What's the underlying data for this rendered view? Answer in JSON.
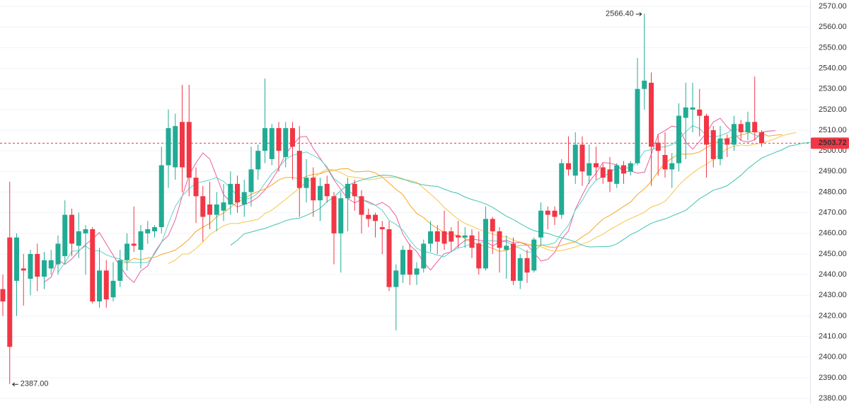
{
  "chart_data": {
    "type": "candlestick",
    "up_color": "#22ab94",
    "down_color": "#f23645",
    "grid": true,
    "ylim": [
      2377.3,
      2573.1
    ],
    "yticks": [
      {
        "value": 2380,
        "label": "2380.00"
      },
      {
        "value": 2390,
        "label": "2390.00"
      },
      {
        "value": 2400,
        "label": "2400.00"
      },
      {
        "value": 2410,
        "label": "2410.00"
      },
      {
        "value": 2420,
        "label": "2420.00"
      },
      {
        "value": 2430,
        "label": "2430.00"
      },
      {
        "value": 2440,
        "label": "2440.00"
      },
      {
        "value": 2450,
        "label": "2450.00"
      },
      {
        "value": 2460,
        "label": "2460.00"
      },
      {
        "value": 2470,
        "label": "2470.00"
      },
      {
        "value": 2480,
        "label": "2480.00"
      },
      {
        "value": 2490,
        "label": "2490.00"
      },
      {
        "value": 2500,
        "label": "2500.00"
      },
      {
        "value": 2510,
        "label": "2510.00"
      },
      {
        "value": 2520,
        "label": "2520.00"
      },
      {
        "value": 2530,
        "label": "2530.00"
      },
      {
        "value": 2540,
        "label": "2540.00"
      },
      {
        "value": 2550,
        "label": "2550.00"
      },
      {
        "value": 2560,
        "label": "2560.00"
      },
      {
        "value": 2570,
        "label": "2570.00"
      }
    ],
    "price_line": {
      "value": 2503.72,
      "label": "2503.72",
      "color": "#f23645"
    },
    "annotations": [
      {
        "value": 2566.4,
        "label": "2566.40",
        "kind": "high"
      },
      {
        "value": 2387,
        "label": "2387.00",
        "kind": "low"
      }
    ],
    "moving_averages": [
      {
        "period": 5,
        "shift": 2,
        "color": "#e8609f"
      },
      {
        "period": 9,
        "shift": 0,
        "color": "#5fd3c6"
      },
      {
        "period": 15,
        "shift": 3,
        "color": "#f5a623"
      },
      {
        "period": 20,
        "shift": 5,
        "color": "#f7c548"
      },
      {
        "period": 26,
        "shift": 8,
        "color": "#3fc3b0"
      }
    ],
    "ohlc": [
      [
        2433,
        2440,
        2420,
        2427
      ],
      [
        2458,
        2485,
        2387,
        2405
      ],
      [
        2437,
        2460,
        2420,
        2458
      ],
      [
        2443,
        2450,
        2425,
        2442
      ],
      [
        2438,
        2452,
        2430,
        2450
      ],
      [
        2450,
        2455,
        2432,
        2439
      ],
      [
        2439,
        2451,
        2433,
        2447
      ],
      [
        2443,
        2452,
        2440,
        2447
      ],
      [
        2445,
        2459,
        2440,
        2455
      ],
      [
        2449,
        2476,
        2445,
        2469
      ],
      [
        2469,
        2472,
        2449,
        2455
      ],
      [
        2454,
        2470,
        2448,
        2461
      ],
      [
        2460,
        2464,
        2440,
        2462
      ],
      [
        2462,
        2463,
        2426,
        2427
      ],
      [
        2427,
        2453,
        2424,
        2442
      ],
      [
        2442,
        2447,
        2424,
        2428
      ],
      [
        2429,
        2446,
        2427,
        2437
      ],
      [
        2437,
        2452,
        2434,
        2447
      ],
      [
        2447,
        2460,
        2442,
        2455
      ],
      [
        2455,
        2473,
        2451,
        2454
      ],
      [
        2452,
        2464,
        2443,
        2461
      ],
      [
        2460,
        2466,
        2455,
        2462
      ],
      [
        2461,
        2464,
        2458,
        2463
      ],
      [
        2463,
        2502,
        2460,
        2493
      ],
      [
        2493,
        2520,
        2482,
        2511
      ],
      [
        2492,
        2518,
        2486,
        2512
      ],
      [
        2514,
        2532,
        2480,
        2492
      ],
      [
        2514,
        2532,
        2478,
        2487
      ],
      [
        2487,
        2492,
        2465,
        2478
      ],
      [
        2478,
        2483,
        2456,
        2468
      ],
      [
        2474,
        2485,
        2462,
        2469
      ],
      [
        2469,
        2480,
        2461,
        2474
      ],
      [
        2471,
        2484,
        2466,
        2475
      ],
      [
        2474,
        2490,
        2469,
        2484
      ],
      [
        2484,
        2488,
        2470,
        2475
      ],
      [
        2474,
        2486,
        2468,
        2480
      ],
      [
        2480,
        2502,
        2473,
        2491
      ],
      [
        2491,
        2503,
        2486,
        2500
      ],
      [
        2500,
        2535,
        2494,
        2511
      ],
      [
        2496,
        2513,
        2493,
        2511
      ],
      [
        2511,
        2514,
        2490,
        2500
      ],
      [
        2497,
        2514,
        2492,
        2511
      ],
      [
        2511,
        2514,
        2486,
        2502
      ],
      [
        2500,
        2512,
        2468,
        2482
      ],
      [
        2482,
        2496,
        2475,
        2487
      ],
      [
        2487,
        2492,
        2468,
        2476
      ],
      [
        2476,
        2487,
        2466,
        2483
      ],
      [
        2484,
        2488,
        2475,
        2478
      ],
      [
        2478,
        2480,
        2445,
        2460
      ],
      [
        2460,
        2480,
        2441,
        2477
      ],
      [
        2477,
        2487,
        2461,
        2484
      ],
      [
        2484,
        2486,
        2471,
        2478
      ],
      [
        2478,
        2481,
        2460,
        2469
      ],
      [
        2469,
        2472,
        2463,
        2467
      ],
      [
        2469,
        2470,
        2458,
        2466
      ],
      [
        2463,
        2466,
        2450,
        2462
      ],
      [
        2462,
        2466,
        2432,
        2434
      ],
      [
        2434,
        2445,
        2413,
        2442
      ],
      [
        2440,
        2454,
        2436,
        2452
      ],
      [
        2452,
        2455,
        2435,
        2440
      ],
      [
        2440,
        2446,
        2435,
        2443
      ],
      [
        2443,
        2457,
        2441,
        2455
      ],
      [
        2455,
        2466,
        2451,
        2461
      ],
      [
        2461,
        2464,
        2450,
        2456
      ],
      [
        2461,
        2471,
        2452,
        2455
      ],
      [
        2461,
        2463,
        2451,
        2456
      ],
      [
        2459,
        2466,
        2453,
        2458
      ],
      [
        2458,
        2463,
        2453,
        2459
      ],
      [
        2459,
        2462,
        2448,
        2453
      ],
      [
        2455,
        2461,
        2440,
        2443
      ],
      [
        2443,
        2473,
        2442,
        2467
      ],
      [
        2467,
        2468,
        2450,
        2461
      ],
      [
        2461,
        2463,
        2441,
        2453
      ],
      [
        2452,
        2459,
        2438,
        2454
      ],
      [
        2455,
        2458,
        2435,
        2437
      ],
      [
        2437,
        2450,
        2433,
        2448
      ],
      [
        2448,
        2452,
        2436,
        2441
      ],
      [
        2442,
        2458,
        2441,
        2457
      ],
      [
        2458,
        2475,
        2454,
        2471
      ],
      [
        2471,
        2473,
        2462,
        2469
      ],
      [
        2471,
        2473,
        2464,
        2468
      ],
      [
        2469,
        2496,
        2467,
        2494
      ],
      [
        2494,
        2507,
        2488,
        2491
      ],
      [
        2488,
        2509,
        2484,
        2503
      ],
      [
        2503,
        2507,
        2483,
        2490
      ],
      [
        2488,
        2503,
        2484,
        2494
      ],
      [
        2494,
        2502,
        2486,
        2492
      ],
      [
        2492,
        2494,
        2484,
        2487
      ],
      [
        2491,
        2497,
        2480,
        2485
      ],
      [
        2484,
        2494,
        2482,
        2493
      ],
      [
        2493,
        2495,
        2484,
        2489
      ],
      [
        2490,
        2495,
        2488,
        2494
      ],
      [
        2494,
        2545,
        2493,
        2530
      ],
      [
        2530,
        2566.4,
        2520,
        2534
      ],
      [
        2533,
        2538,
        2483,
        2502
      ],
      [
        2504,
        2508,
        2488,
        2500
      ],
      [
        2498,
        2509,
        2487,
        2491
      ],
      [
        2491,
        2499,
        2482,
        2494
      ],
      [
        2494,
        2523,
        2490,
        2517
      ],
      [
        2516,
        2533,
        2496,
        2521
      ],
      [
        2520,
        2533,
        2509,
        2521
      ],
      [
        2520,
        2530,
        2507,
        2517
      ],
      [
        2517,
        2518,
        2487,
        2503
      ],
      [
        2510,
        2512,
        2492,
        2496
      ],
      [
        2496,
        2512,
        2493,
        2506
      ],
      [
        2506,
        2508,
        2497,
        2503
      ],
      [
        2503,
        2517,
        2500,
        2513
      ],
      [
        2513,
        2515,
        2505,
        2509
      ],
      [
        2509,
        2519,
        2505,
        2514
      ],
      [
        2514,
        2536,
        2505,
        2509
      ],
      [
        2509,
        2510,
        2502,
        2503.72
      ]
    ]
  }
}
